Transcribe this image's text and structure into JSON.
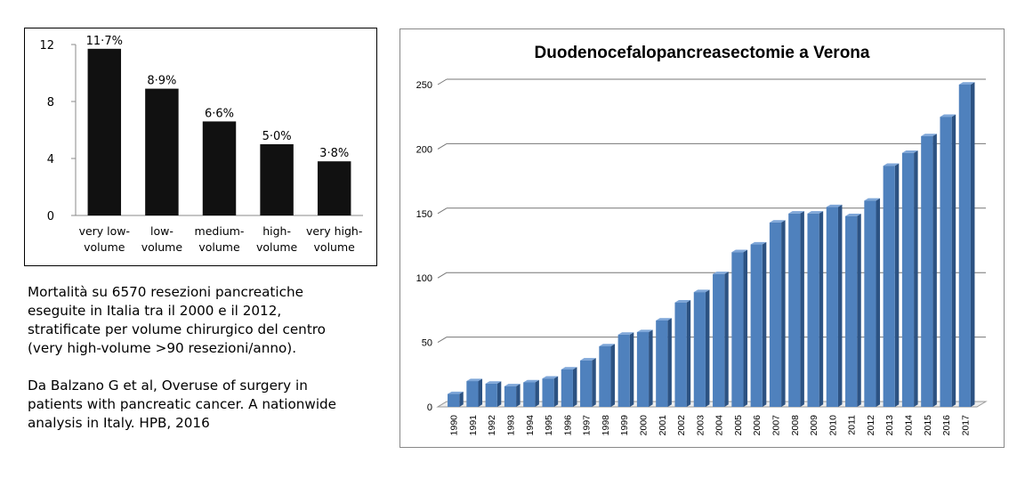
{
  "chart_data": [
    {
      "type": "bar",
      "categories": [
        "very low-volume",
        "low-volume",
        "medium-volume",
        "high-volume",
        "very high-volume"
      ],
      "category_lines": [
        [
          "very low-",
          "volume"
        ],
        [
          "low-",
          "volume"
        ],
        [
          "medium-",
          "volume"
        ],
        [
          "high-",
          "volume"
        ],
        [
          "very high-",
          "volume"
        ]
      ],
      "values": [
        11.7,
        8.9,
        6.6,
        5.0,
        3.8
      ],
      "data_labels": [
        "11·7%",
        "8·9%",
        "6·6%",
        "5·0%",
        "3·8%"
      ],
      "y_ticks": [
        0,
        4,
        8,
        12
      ],
      "ylim": [
        0,
        12
      ],
      "bar_color": "#111111",
      "title": "",
      "xlabel": "",
      "ylabel": ""
    },
    {
      "type": "bar",
      "title": "Duodenocefalopancreasectomie a Verona",
      "categories": [
        "1990",
        "1991",
        "1992",
        "1993",
        "1994",
        "1995",
        "1996",
        "1997",
        "1998",
        "1999",
        "2000",
        "2001",
        "2002",
        "2003",
        "2004",
        "2005",
        "2006",
        "2007",
        "2008",
        "2009",
        "2010",
        "2011",
        "2012",
        "2013",
        "2014",
        "2015",
        "2016",
        "2017"
      ],
      "values": [
        10,
        20,
        18,
        16,
        19,
        22,
        29,
        36,
        47,
        56,
        58,
        67,
        81,
        89,
        103,
        120,
        126,
        143,
        150,
        150,
        155,
        148,
        160,
        187,
        197,
        210,
        225,
        250
      ],
      "y_ticks": [
        0,
        50,
        100,
        150,
        200,
        250
      ],
      "ylim": [
        0,
        250
      ],
      "grid": true,
      "bar_color": "#4F81BD",
      "xlabel": "",
      "ylabel": ""
    }
  ],
  "caption": {
    "line1": "Mortalità su 6570 resezioni pancreatiche",
    "line2": "eseguite in Italia tra il 2000 e il 2012,",
    "line3": "stratificate per volume chirurgico del centro",
    "line4": "(very high-volume >90 resezioni/anno).",
    "line5": "Da Balzano G et al, Overuse of surgery in",
    "line6": "patients with pancreatic cancer. A nationwide",
    "line7": "analysis in Italy. HPB, 2016"
  }
}
